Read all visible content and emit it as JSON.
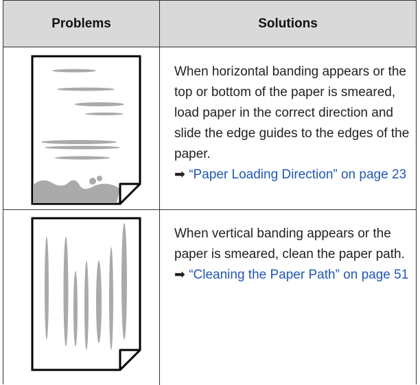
{
  "table": {
    "headers": [
      "Problems",
      "Solutions"
    ],
    "rows": [
      {
        "solution": "When horizontal banding appears or the top or bottom of the paper is smeared, load paper in the correct direction and slide the edge guides to the edges of the paper.",
        "link": "“Paper Loading Direction” on page 23"
      },
      {
        "solution": "When vertical banding appears or the paper is smeared, clean the paper path.",
        "link": "“Cleaning the Paper Path” on page 51"
      }
    ]
  }
}
